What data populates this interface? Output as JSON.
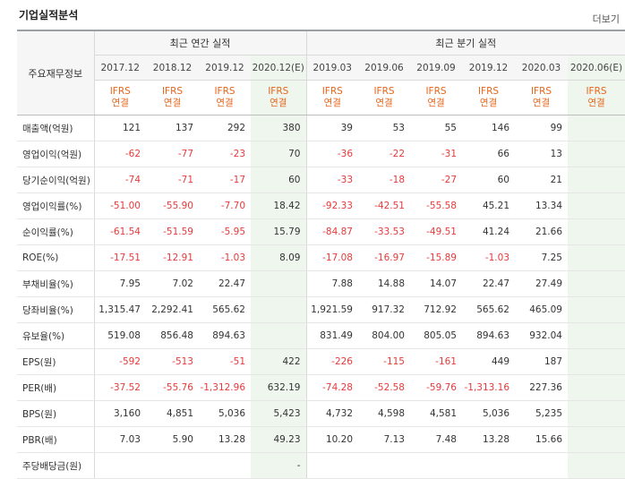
{
  "header": {
    "title": "기업실적분석",
    "more_label": "더보기"
  },
  "table": {
    "row_header": "주요재무정보",
    "group_annual": "최근 연간 실적",
    "group_quarter": "최근 분기 실적",
    "periods": [
      "2017.12",
      "2018.12",
      "2019.12",
      "2020.12(E)",
      "2019.03",
      "2019.06",
      "2019.09",
      "2019.12",
      "2020.03",
      "2020.06(E)"
    ],
    "ifrs_top": "IFRS",
    "ifrs_bottom": "연결",
    "rows": [
      {
        "label": "매출액(억원)",
        "values": [
          "121",
          "137",
          "292",
          "380",
          "39",
          "53",
          "55",
          "146",
          "99",
          ""
        ]
      },
      {
        "label": "영업이익(억원)",
        "values": [
          "-62",
          "-77",
          "-23",
          "70",
          "-36",
          "-22",
          "-31",
          "66",
          "13",
          ""
        ]
      },
      {
        "label": "당기순이익(억원)",
        "values": [
          "-74",
          "-71",
          "-17",
          "60",
          "-33",
          "-18",
          "-27",
          "60",
          "21",
          ""
        ]
      },
      {
        "label": "영업이익률(%)",
        "values": [
          "-51.00",
          "-55.90",
          "-7.70",
          "18.42",
          "-92.33",
          "-42.51",
          "-55.58",
          "45.21",
          "13.34",
          ""
        ]
      },
      {
        "label": "순이익률(%)",
        "values": [
          "-61.54",
          "-51.59",
          "-5.95",
          "15.79",
          "-84.87",
          "-33.53",
          "-49.51",
          "41.24",
          "21.66",
          ""
        ]
      },
      {
        "label": "ROE(%)",
        "values": [
          "-17.51",
          "-12.91",
          "-1.03",
          "8.09",
          "-17.08",
          "-16.97",
          "-15.89",
          "-1.03",
          "7.25",
          ""
        ]
      },
      {
        "label": "부채비율(%)",
        "values": [
          "7.95",
          "7.02",
          "22.47",
          "",
          "7.88",
          "14.88",
          "14.07",
          "22.47",
          "27.49",
          ""
        ]
      },
      {
        "label": "당좌비율(%)",
        "values": [
          "1,315.47",
          "2,292.41",
          "565.62",
          "",
          "1,921.59",
          "917.32",
          "712.92",
          "565.62",
          "465.09",
          ""
        ]
      },
      {
        "label": "유보율(%)",
        "values": [
          "519.08",
          "856.48",
          "894.63",
          "",
          "831.49",
          "804.00",
          "805.05",
          "894.63",
          "932.04",
          ""
        ]
      },
      {
        "label": "EPS(원)",
        "values": [
          "-592",
          "-513",
          "-51",
          "422",
          "-226",
          "-115",
          "-161",
          "449",
          "187",
          ""
        ]
      },
      {
        "label": "PER(배)",
        "values": [
          "-37.52",
          "-55.76",
          "-1,312.96",
          "632.19",
          "-74.28",
          "-52.58",
          "-59.76",
          "-1,313.16",
          "227.36",
          ""
        ]
      },
      {
        "label": "BPS(원)",
        "values": [
          "3,160",
          "4,851",
          "5,036",
          "5,423",
          "4,732",
          "4,598",
          "4,581",
          "5,036",
          "5,235",
          ""
        ]
      },
      {
        "label": "PBR(배)",
        "values": [
          "7.03",
          "5.90",
          "13.28",
          "49.23",
          "10.20",
          "7.13",
          "7.48",
          "13.28",
          "15.66",
          ""
        ]
      },
      {
        "label": "주당배당금(원)",
        "values": [
          "",
          "",
          "",
          "-",
          "",
          "",
          "",
          "",
          "",
          ""
        ]
      }
    ]
  }
}
